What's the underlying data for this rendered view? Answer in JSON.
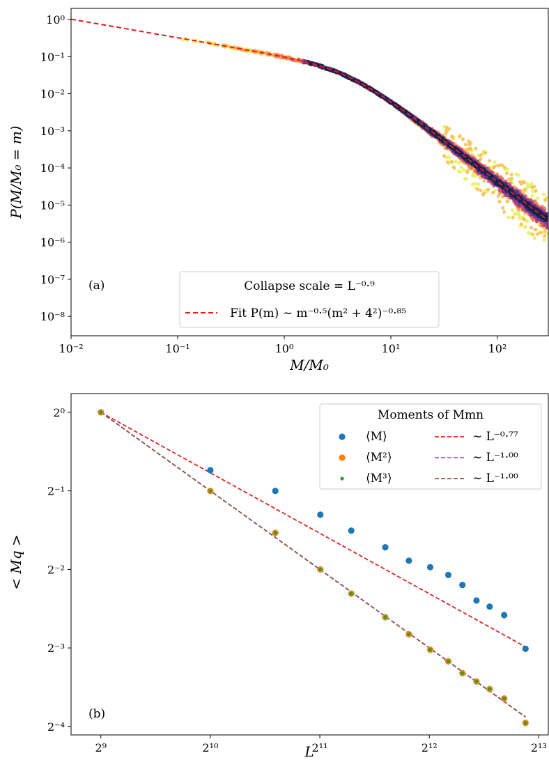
{
  "chart_data": [
    {
      "panel": "(a)",
      "type": "scatter",
      "xscale": "log10",
      "yscale": "log10",
      "xlim": [
        0.01,
        300
      ],
      "ylim": [
        3e-09,
        2
      ],
      "xlabel": "M/M₀",
      "ylabel": "P(M/M₀ = m)",
      "xticks": [
        0.01,
        0.1,
        1,
        10,
        100
      ],
      "xtick_labels": [
        "10⁻²",
        "10⁻¹",
        "10⁰",
        "10¹",
        "10²"
      ],
      "yticks": [
        1e-08,
        1e-07,
        1e-06,
        1e-05,
        0.0001,
        0.001,
        0.01,
        0.1,
        1
      ],
      "ytick_labels": [
        "10⁻⁸",
        "10⁻⁷",
        "10⁻⁶",
        "10⁻⁵",
        "10⁻⁴",
        "10⁻³",
        "10⁻²",
        "10⁻¹",
        "10⁰"
      ],
      "legend": {
        "title": "Collapse scale = L⁻⁰·⁹",
        "entries": [
          {
            "label": "Fit P(m) ∼ m⁻⁰·⁵(m² + 4²)⁻⁰·⁸⁵",
            "color": "#e41a1c",
            "style": "dashed"
          }
        ],
        "placement": "lower center"
      },
      "fit": {
        "A": 1.08,
        "a": 0.5,
        "c": 16,
        "b": 0.85,
        "color": "#e41a1c"
      },
      "series_colors": [
        "#e5f35f",
        "#f8c254",
        "#fca050",
        "#f17b55",
        "#d6566b",
        "#b34185",
        "#873a8f",
        "#5c3788",
        "#2c2d6b",
        "#14214e"
      ],
      "scatter_x_range": [
        0.1,
        300
      ]
    },
    {
      "panel": "(b)",
      "type": "scatter",
      "xscale": "log2",
      "yscale": "log2",
      "xlim": [
        424,
        8700
      ],
      "ylim": [
        0.058,
        1.18
      ],
      "xlabel": "L",
      "ylabel": "< Mq >",
      "xticks": [
        512,
        1024,
        2048,
        4096,
        8192
      ],
      "xtick_labels": [
        "2⁹",
        "2¹⁰",
        "2¹¹",
        "2¹²",
        "2¹³"
      ],
      "yticks": [
        0.0625,
        0.125,
        0.25,
        0.5,
        1
      ],
      "ytick_labels": [
        "2⁻⁴",
        "2⁻³",
        "2⁻²",
        "2⁻¹",
        "2⁰"
      ],
      "x": [
        512,
        1024,
        1545,
        2055,
        2499,
        3100,
        3600,
        4120,
        4620,
        5050,
        5520,
        6000,
        6580,
        7530
      ],
      "series": [
        {
          "name": "⟨M⟩",
          "color": "#1f77b4",
          "values": [
            1.0,
            0.6,
            0.5,
            0.405,
            0.352,
            0.304,
            0.27,
            0.255,
            0.238,
            0.218,
            0.19,
            0.18,
            0.167,
            0.124
          ]
        },
        {
          "name": "⟨M²⟩",
          "color": "#ff7f0e",
          "values": [
            1.0,
            0.5,
            0.345,
            0.25,
            0.202,
            0.164,
            0.141,
            0.123,
            0.111,
            0.1,
            0.093,
            0.087,
            0.08,
            0.0645
          ]
        },
        {
          "name": "⟨M³⟩",
          "color": "#2ca02c",
          "values": [
            1.0,
            0.5,
            0.345,
            0.25,
            0.202,
            0.164,
            0.141,
            0.123,
            0.111,
            0.1,
            0.093,
            0.087,
            0.08,
            0.0645
          ]
        }
      ],
      "fits": [
        {
          "name": "∼ L⁻⁰·⁷⁷",
          "color": "#d62728",
          "exponent": -0.77
        },
        {
          "name": "∼ L⁻¹·⁰⁰",
          "color": "#9467bd",
          "exponent": -1.0
        },
        {
          "name": "∼ L⁻¹·⁰⁰",
          "color": "#8c564b",
          "exponent": -1.0
        }
      ],
      "legend": {
        "title": "Moments of Mmn",
        "placement": "upper right"
      }
    }
  ]
}
